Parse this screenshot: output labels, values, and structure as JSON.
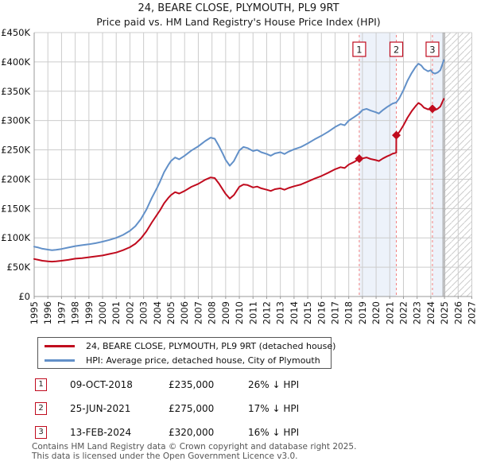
{
  "header": {
    "title": "24, BEARE CLOSE, PLYMOUTH, PL9 9RT",
    "subtitle": "Price paid vs. HM Land Registry's House Price Index (HPI)"
  },
  "legend": {
    "items": [
      {
        "label": "24, BEARE CLOSE, PLYMOUTH, PL9 9RT (detached house)",
        "color": "#c00b1e"
      },
      {
        "label": "HPI: Average price, detached house, City of Plymouth",
        "color": "#6290c8"
      }
    ]
  },
  "transactions": [
    {
      "num": "1",
      "date": "09-OCT-2018",
      "price": "£235,000",
      "vs_hpi": "26% ↓ HPI"
    },
    {
      "num": "2",
      "date": "25-JUN-2021",
      "price": "£275,000",
      "vs_hpi": "17% ↓ HPI"
    },
    {
      "num": "3",
      "date": "13-FEB-2024",
      "price": "£320,000",
      "vs_hpi": "16% ↓ HPI"
    }
  ],
  "footer": {
    "line1": "Contains HM Land Registry data © Crown copyright and database right 2025.",
    "line2": "This data is licensed under the Open Government Licence v3.0."
  },
  "chart_data": {
    "type": "line",
    "title": "24, BEARE CLOSE, PLYMOUTH, PL9 9RT — Price paid vs. HPI",
    "values_unit": "GBP_thousands",
    "x_axis": {
      "min": 1995,
      "max": 2027,
      "tick_years": [
        1995,
        1996,
        1997,
        1998,
        1999,
        2000,
        2001,
        2002,
        2003,
        2004,
        2005,
        2006,
        2007,
        2008,
        2009,
        2010,
        2011,
        2012,
        2013,
        2014,
        2015,
        2016,
        2017,
        2018,
        2019,
        2020,
        2021,
        2022,
        2023,
        2024,
        2025,
        2026,
        2027
      ]
    },
    "y_axis": {
      "min_k": 0,
      "max_k": 450,
      "step_k": 50,
      "tick_labels": [
        "£0",
        "£50K",
        "£100K",
        "£150K",
        "£200K",
        "£250K",
        "£300K",
        "£350K",
        "£400K",
        "£450K"
      ]
    },
    "grid": true,
    "legend_position": "bottom",
    "now_year": 2024.95,
    "shaded_bands": [
      [
        2018.77,
        2021.48
      ],
      [
        2024.12,
        2024.95
      ]
    ],
    "future_hatch": [
      2024.95,
      2027
    ],
    "sales": [
      {
        "num": "1",
        "year": 2018.77,
        "value_k": 235
      },
      {
        "num": "2",
        "year": 2021.48,
        "value_k": 275
      },
      {
        "num": "3",
        "year": 2024.12,
        "value_k": 320
      }
    ],
    "series": [
      {
        "name": "HPI: Average price, detached house, City of Plymouth",
        "color": "#6290c8",
        "points": [
          [
            1995.0,
            85
          ],
          [
            1995.3,
            83.5
          ],
          [
            1995.6,
            81.5
          ],
          [
            1996.0,
            80
          ],
          [
            1996.3,
            79
          ],
          [
            1996.6,
            79.5
          ],
          [
            1997.0,
            81
          ],
          [
            1997.5,
            83.5
          ],
          [
            1998.0,
            86
          ],
          [
            1998.5,
            87.5
          ],
          [
            1999.0,
            89
          ],
          [
            1999.5,
            91
          ],
          [
            2000.0,
            93.5
          ],
          [
            2000.5,
            96.5
          ],
          [
            2001.0,
            100
          ],
          [
            2001.5,
            105
          ],
          [
            2002.0,
            112
          ],
          [
            2002.4,
            120
          ],
          [
            2002.8,
            132
          ],
          [
            2003.2,
            148
          ],
          [
            2003.6,
            168
          ],
          [
            2004.0,
            186
          ],
          [
            2004.2,
            196
          ],
          [
            2004.5,
            212
          ],
          [
            2004.8,
            224
          ],
          [
            2005.0,
            231
          ],
          [
            2005.3,
            237
          ],
          [
            2005.6,
            234
          ],
          [
            2006.0,
            240
          ],
          [
            2006.5,
            249
          ],
          [
            2007.0,
            256
          ],
          [
            2007.5,
            265
          ],
          [
            2007.9,
            271
          ],
          [
            2008.2,
            269
          ],
          [
            2008.5,
            257
          ],
          [
            2008.8,
            243
          ],
          [
            2009.0,
            233
          ],
          [
            2009.3,
            223
          ],
          [
            2009.6,
            231
          ],
          [
            2009.8,
            240
          ],
          [
            2010.0,
            249
          ],
          [
            2010.3,
            255
          ],
          [
            2010.6,
            253
          ],
          [
            2011.0,
            248
          ],
          [
            2011.3,
            250
          ],
          [
            2011.6,
            246
          ],
          [
            2012.0,
            243
          ],
          [
            2012.3,
            240
          ],
          [
            2012.6,
            244
          ],
          [
            2013.0,
            246
          ],
          [
            2013.3,
            243
          ],
          [
            2013.6,
            247
          ],
          [
            2014.0,
            251
          ],
          [
            2014.5,
            255
          ],
          [
            2015.0,
            261
          ],
          [
            2015.5,
            268
          ],
          [
            2016.0,
            274
          ],
          [
            2016.5,
            281
          ],
          [
            2017.0,
            289
          ],
          [
            2017.4,
            294
          ],
          [
            2017.7,
            292
          ],
          [
            2018.0,
            300
          ],
          [
            2018.4,
            306
          ],
          [
            2018.77,
            312
          ],
          [
            2019.0,
            318
          ],
          [
            2019.3,
            320
          ],
          [
            2019.6,
            317
          ],
          [
            2020.0,
            314
          ],
          [
            2020.2,
            312
          ],
          [
            2020.5,
            318
          ],
          [
            2020.8,
            323
          ],
          [
            2021.0,
            326
          ],
          [
            2021.2,
            329
          ],
          [
            2021.48,
            331
          ],
          [
            2021.7,
            338
          ],
          [
            2022.0,
            352
          ],
          [
            2022.3,
            368
          ],
          [
            2022.6,
            381
          ],
          [
            2022.9,
            392
          ],
          [
            2023.1,
            397
          ],
          [
            2023.3,
            394
          ],
          [
            2023.5,
            388
          ],
          [
            2023.8,
            384
          ],
          [
            2024.0,
            386
          ],
          [
            2024.12,
            382
          ],
          [
            2024.3,
            380
          ],
          [
            2024.5,
            382
          ],
          [
            2024.7,
            386
          ],
          [
            2024.85,
            396
          ],
          [
            2024.95,
            403
          ]
        ]
      },
      {
        "name": "24, BEARE CLOSE, PLYMOUTH, PL9 9RT (detached house)",
        "color": "#c00b1e",
        "points": [
          [
            1995.0,
            64
          ],
          [
            1995.3,
            62.5
          ],
          [
            1995.6,
            61
          ],
          [
            1996.0,
            60
          ],
          [
            1996.3,
            59.5
          ],
          [
            1996.6,
            60
          ],
          [
            1997.0,
            61
          ],
          [
            1997.5,
            62.5
          ],
          [
            1998.0,
            64.5
          ],
          [
            1998.5,
            65.5
          ],
          [
            1999.0,
            67
          ],
          [
            1999.5,
            68.5
          ],
          [
            2000.0,
            70
          ],
          [
            2000.5,
            72.5
          ],
          [
            2001.0,
            75
          ],
          [
            2001.5,
            79
          ],
          [
            2002.0,
            84
          ],
          [
            2002.4,
            90
          ],
          [
            2002.8,
            99
          ],
          [
            2003.2,
            111
          ],
          [
            2003.6,
            126
          ],
          [
            2004.0,
            140
          ],
          [
            2004.2,
            147
          ],
          [
            2004.5,
            159
          ],
          [
            2004.8,
            168
          ],
          [
            2005.0,
            173
          ],
          [
            2005.3,
            178
          ],
          [
            2005.6,
            175.5
          ],
          [
            2006.0,
            180
          ],
          [
            2006.5,
            187
          ],
          [
            2007.0,
            192
          ],
          [
            2007.5,
            199
          ],
          [
            2007.9,
            203
          ],
          [
            2008.2,
            202
          ],
          [
            2008.5,
            193
          ],
          [
            2008.8,
            182
          ],
          [
            2009.0,
            175
          ],
          [
            2009.3,
            167
          ],
          [
            2009.6,
            173
          ],
          [
            2009.8,
            180
          ],
          [
            2010.0,
            187
          ],
          [
            2010.3,
            191
          ],
          [
            2010.6,
            190
          ],
          [
            2011.0,
            186
          ],
          [
            2011.3,
            187.5
          ],
          [
            2011.6,
            184.5
          ],
          [
            2012.0,
            182
          ],
          [
            2012.3,
            180
          ],
          [
            2012.6,
            183
          ],
          [
            2013.0,
            184.5
          ],
          [
            2013.3,
            182
          ],
          [
            2013.6,
            185
          ],
          [
            2014.0,
            188
          ],
          [
            2014.5,
            191
          ],
          [
            2015.0,
            196
          ],
          [
            2015.5,
            201
          ],
          [
            2016.0,
            205.5
          ],
          [
            2016.5,
            211
          ],
          [
            2017.0,
            217
          ],
          [
            2017.4,
            220.5
          ],
          [
            2017.7,
            219
          ],
          [
            2018.0,
            225
          ],
          [
            2018.4,
            229.5
          ],
          [
            2018.77,
            235
          ],
          [
            2019.0,
            235.5
          ],
          [
            2019.3,
            237
          ],
          [
            2019.6,
            234.5
          ],
          [
            2020.0,
            232.5
          ],
          [
            2020.2,
            231
          ],
          [
            2020.5,
            235.5
          ],
          [
            2020.8,
            239
          ],
          [
            2021.0,
            241
          ],
          [
            2021.2,
            243.5
          ],
          [
            2021.47,
            245
          ],
          [
            2021.48,
            275
          ],
          [
            2021.7,
            280.5
          ],
          [
            2022.0,
            292
          ],
          [
            2022.3,
            305
          ],
          [
            2022.6,
            316
          ],
          [
            2022.9,
            325
          ],
          [
            2023.1,
            330
          ],
          [
            2023.3,
            327
          ],
          [
            2023.5,
            322
          ],
          [
            2023.8,
            319
          ],
          [
            2024.0,
            320
          ],
          [
            2024.12,
            320
          ],
          [
            2024.3,
            318
          ],
          [
            2024.5,
            320
          ],
          [
            2024.7,
            324
          ],
          [
            2024.85,
            332
          ],
          [
            2024.95,
            337
          ]
        ]
      }
    ],
    "colors": {
      "grid": "#cccccc",
      "axis": "#999999",
      "band": "#edf2fa",
      "hatch": "#cccccc",
      "sale_line": "#f28080",
      "marker_box_border": "#c00b1e",
      "now_line": "#999999",
      "text": "#111111"
    }
  }
}
